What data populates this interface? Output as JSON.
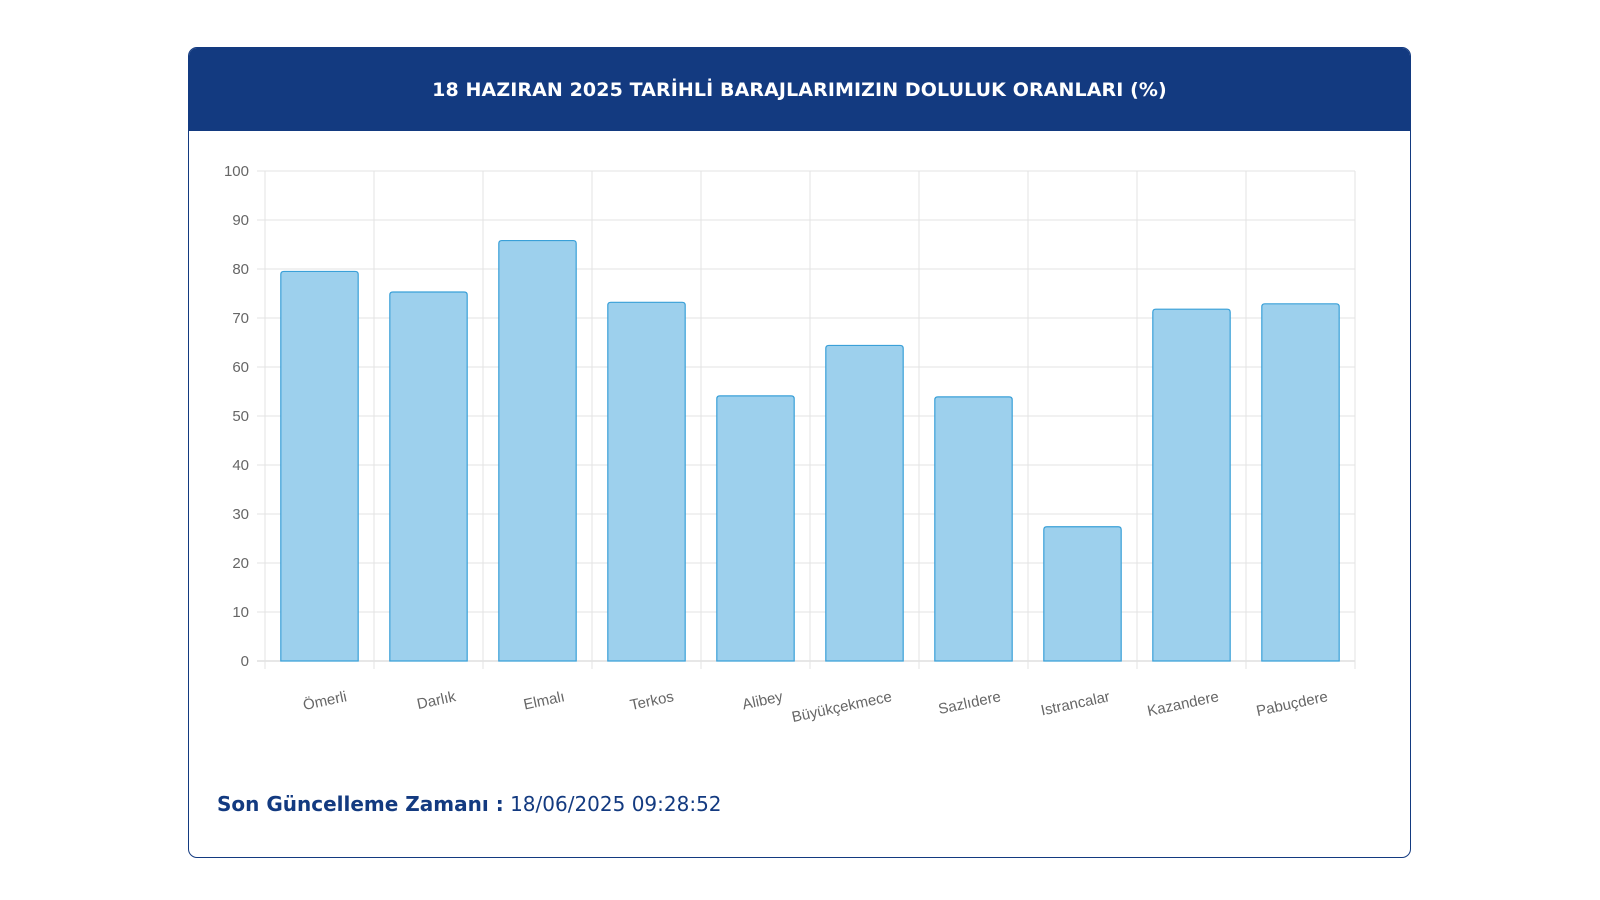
{
  "header": {
    "title": "18 HAZIRAN 2025 TARİHLİ BARAJLARIMIZIN DOLULUK ORANLARI (%)"
  },
  "footer": {
    "label": "Son Güncelleme Zamanı :",
    "timestamp": "18/06/2025 09:28:52"
  },
  "colors": {
    "header_bg": "#133a80",
    "bar_fill": "#9dd0ed",
    "bar_stroke": "#3aa0d8",
    "grid": "#e3e3e3",
    "axis_text": "#666666"
  },
  "chart_data": {
    "type": "bar",
    "categories": [
      "Ömerli",
      "Darlık",
      "Elmalı",
      "Terkos",
      "Alibey",
      "Büyükçekmece",
      "Sazlıdere",
      "Istrancalar",
      "Kazandere",
      "Pabuçdere"
    ],
    "values": [
      79.5,
      75.3,
      85.8,
      73.2,
      54.1,
      64.4,
      53.9,
      27.4,
      71.8,
      72.9
    ],
    "ylim": [
      0,
      100
    ],
    "yticks": [
      0,
      10,
      20,
      30,
      40,
      50,
      60,
      70,
      80,
      90,
      100
    ],
    "title": "",
    "xlabel": "",
    "ylabel": "",
    "grid": true,
    "legend": "none"
  }
}
